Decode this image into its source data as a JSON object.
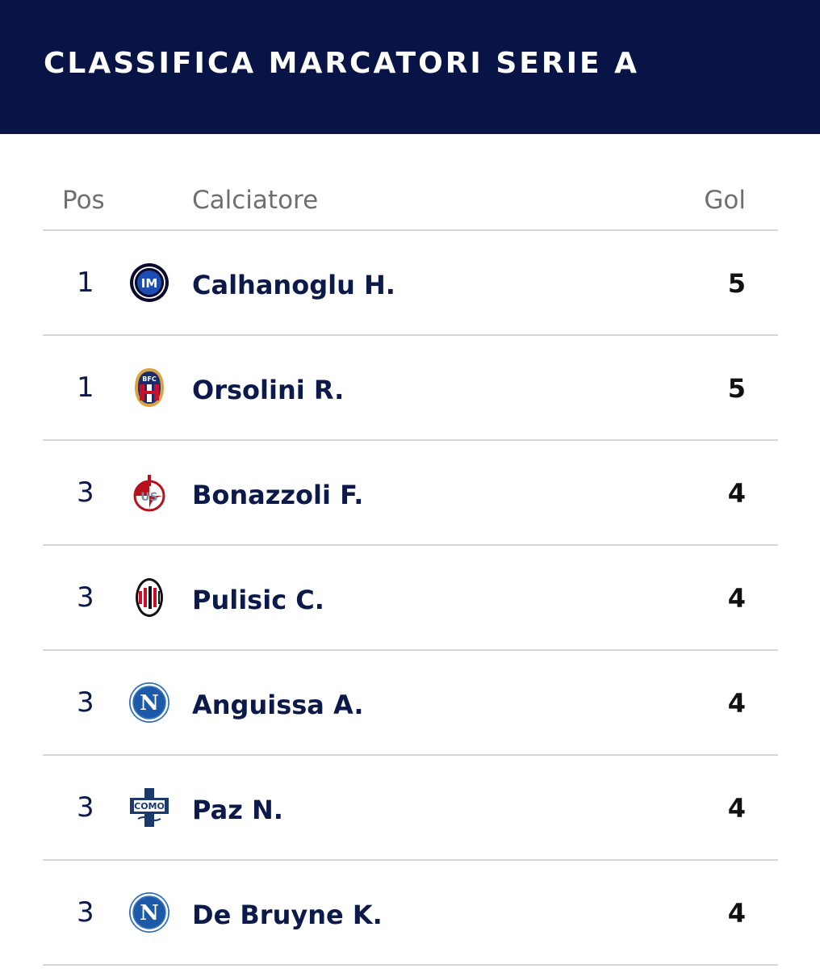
{
  "header": {
    "title": "CLASSIFICA MARCATORI SERIE A"
  },
  "table": {
    "columns": {
      "pos": "Pos",
      "player": "Calciatore",
      "goals": "Gol"
    },
    "rows": [
      {
        "pos": "1",
        "player": "Calhanoglu H.",
        "goals": "5",
        "crest": "inter-crest-icon"
      },
      {
        "pos": "1",
        "player": "Orsolini R.",
        "goals": "5",
        "crest": "bologna-crest-icon"
      },
      {
        "pos": "3",
        "player": "Bonazzoli F.",
        "goals": "4",
        "crest": "cremonese-crest-icon"
      },
      {
        "pos": "3",
        "player": "Pulisic C.",
        "goals": "4",
        "crest": "milan-crest-icon"
      },
      {
        "pos": "3",
        "player": "Anguissa A.",
        "goals": "4",
        "crest": "napoli-crest-icon"
      },
      {
        "pos": "3",
        "player": "Paz N.",
        "goals": "4",
        "crest": "como-crest-icon"
      },
      {
        "pos": "3",
        "player": "De Bruyne K.",
        "goals": "4",
        "crest": "napoli-crest-icon"
      }
    ]
  },
  "colors": {
    "header_bg": "#071445",
    "text_primary": "#0b1a4a",
    "divider": "#d6d6d6"
  }
}
